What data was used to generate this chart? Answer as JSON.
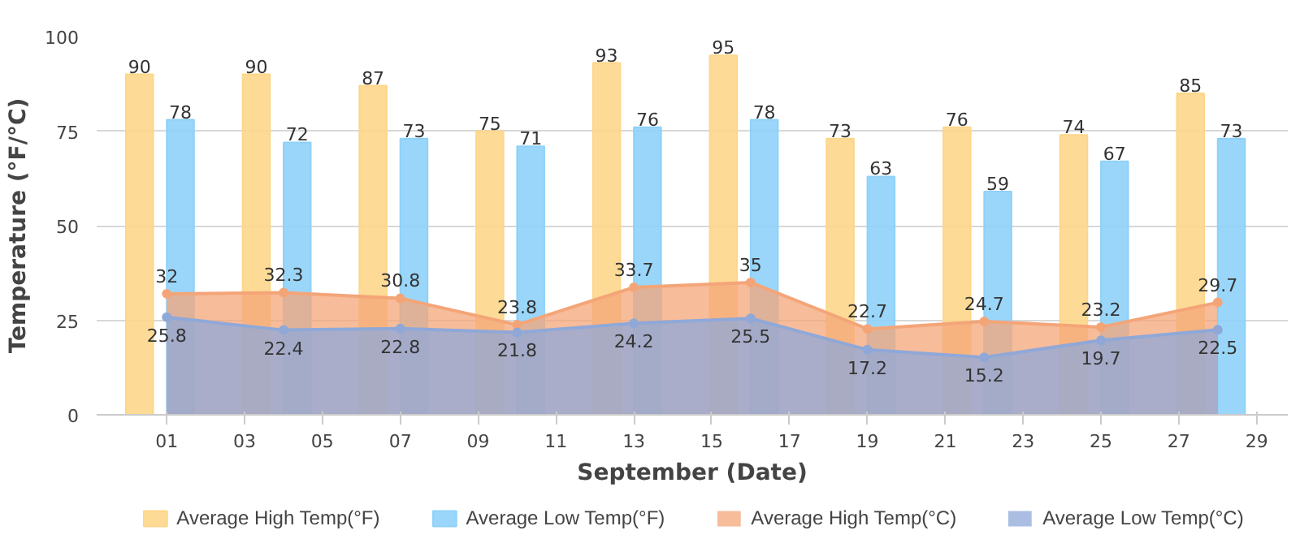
{
  "chart_data": {
    "type": "bar",
    "xlabel": "September (Date)",
    "ylabel": "Temperature (°F/°C)",
    "x": [
      1,
      4,
      7,
      10,
      13,
      16,
      19,
      22,
      25,
      28
    ],
    "xlim": [
      -0.8,
      29.8
    ],
    "xticks": [
      {
        "value": 1,
        "label": "01"
      },
      {
        "value": 3,
        "label": "03"
      },
      {
        "value": 5,
        "label": "05"
      },
      {
        "value": 7,
        "label": "07"
      },
      {
        "value": 9,
        "label": "09"
      },
      11,
      13,
      15,
      17,
      19,
      21,
      23,
      25,
      27,
      29
    ],
    "ylim": [
      0,
      100
    ],
    "yticks": [
      0,
      25,
      50,
      75,
      100
    ],
    "series": [
      {
        "name": "Average High Temp(°F)",
        "color": "#fdd68a",
        "values": [
          90,
          90,
          87,
          75,
          93,
          95,
          73,
          76,
          74,
          85
        ]
      },
      {
        "name": "Average Low Temp(°F)",
        "color": "#8fd1f8",
        "values": [
          78,
          72,
          73,
          71,
          76,
          78,
          63,
          59,
          67,
          73
        ]
      },
      {
        "name": "Average High Temp(°C)",
        "color": "#f4a578",
        "type": "area",
        "values": [
          32,
          32.3,
          30.8,
          23.8,
          33.7,
          35,
          22.7,
          24.7,
          23.2,
          29.7
        ]
      },
      {
        "name": "Average Low Temp(°C)",
        "color": "#8fa8d8",
        "type": "area",
        "values": [
          25.8,
          22.4,
          22.8,
          21.8,
          24.2,
          25.5,
          17.2,
          15.2,
          19.7,
          22.5
        ]
      }
    ],
    "data_labels": true,
    "grid": "y",
    "legend": "bottom"
  }
}
